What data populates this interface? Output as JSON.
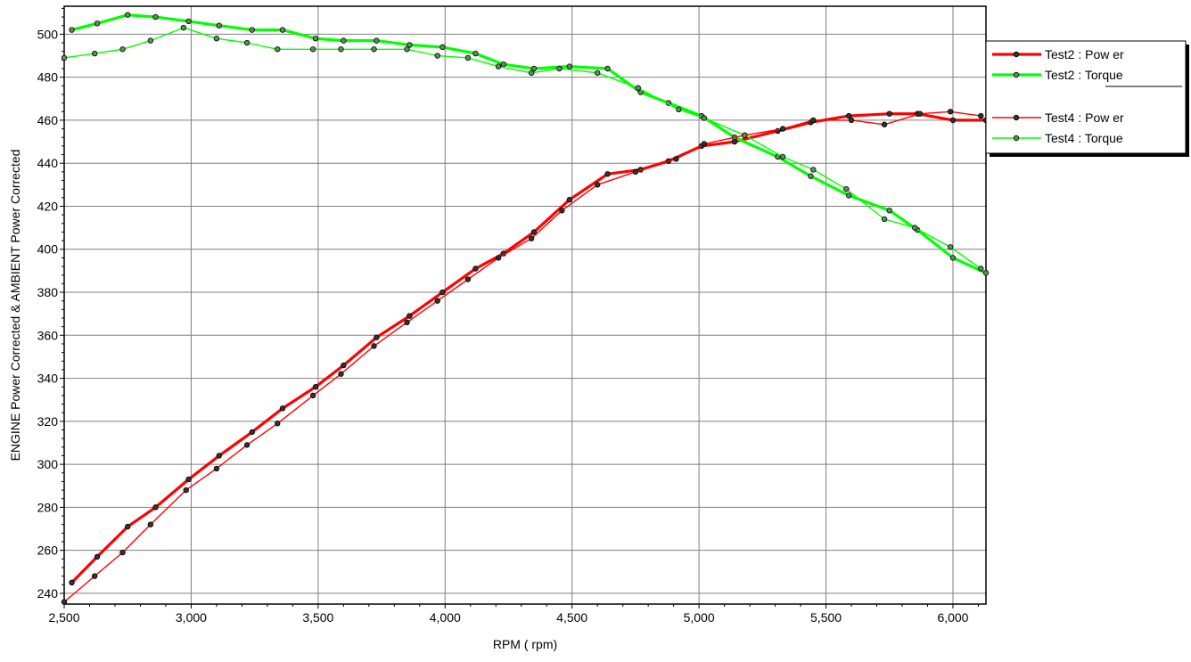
{
  "chart_data": {
    "type": "line",
    "xlabel": "RPM ( rpm)",
    "ylabel": "ENGINE Power Corrected & AMBIENT Power Corrected",
    "xlim": [
      2500,
      6130
    ],
    "ylim": [
      235,
      513
    ],
    "x_ticks": [
      2500,
      3000,
      3500,
      4000,
      4500,
      5000,
      5500,
      6000
    ],
    "x_tick_labels": [
      "2,500",
      "3,000",
      "3,500",
      "4,000",
      "4,500",
      "5,000",
      "5,500",
      "6,000"
    ],
    "y_ticks": [
      240,
      260,
      280,
      300,
      320,
      340,
      360,
      380,
      400,
      420,
      440,
      460,
      480,
      500
    ],
    "y_tick_labels": [
      "240",
      "260",
      "280",
      "300",
      "320",
      "340",
      "360",
      "380",
      "400",
      "420",
      "440",
      "460",
      "480",
      "500"
    ],
    "grid": true,
    "legend_position": "right",
    "series": [
      {
        "name": "Test2 : Pow er",
        "color": "#ff0000",
        "marker_color": "#333333",
        "bold": true,
        "points": [
          [
            2530,
            245
          ],
          [
            2630,
            257
          ],
          [
            2750,
            271
          ],
          [
            2860,
            280
          ],
          [
            2990,
            293
          ],
          [
            3110,
            304
          ],
          [
            3240,
            315
          ],
          [
            3360,
            326
          ],
          [
            3490,
            336
          ],
          [
            3600,
            346
          ],
          [
            3730,
            359
          ],
          [
            3860,
            369
          ],
          [
            3990,
            380
          ],
          [
            4120,
            391
          ],
          [
            4230,
            398
          ],
          [
            4350,
            408
          ],
          [
            4490,
            423
          ],
          [
            4640,
            435
          ],
          [
            4770,
            437
          ],
          [
            4880,
            441
          ],
          [
            5010,
            448
          ],
          [
            5140,
            450
          ],
          [
            5310,
            455
          ],
          [
            5440,
            459
          ],
          [
            5590,
            462
          ],
          [
            5750,
            463
          ],
          [
            5860,
            463
          ],
          [
            6000,
            460
          ],
          [
            6130,
            460
          ]
        ]
      },
      {
        "name": "Test2 : Torque",
        "color": "#00ff00",
        "marker_color": "#5a8f5a",
        "bold": true,
        "points": [
          [
            2530,
            502
          ],
          [
            2630,
            505
          ],
          [
            2750,
            509
          ],
          [
            2860,
            508
          ],
          [
            2990,
            506
          ],
          [
            3110,
            504
          ],
          [
            3240,
            502
          ],
          [
            3360,
            502
          ],
          [
            3490,
            498
          ],
          [
            3600,
            497
          ],
          [
            3730,
            497
          ],
          [
            3860,
            495
          ],
          [
            3990,
            494
          ],
          [
            4120,
            491
          ],
          [
            4230,
            486
          ],
          [
            4350,
            484
          ],
          [
            4490,
            485
          ],
          [
            4640,
            484
          ],
          [
            4770,
            473
          ],
          [
            4880,
            468
          ],
          [
            5010,
            462
          ],
          [
            5140,
            452
          ],
          [
            5310,
            443
          ],
          [
            5440,
            434
          ],
          [
            5590,
            425
          ],
          [
            5750,
            418
          ],
          [
            5860,
            409
          ],
          [
            6000,
            396
          ],
          [
            6130,
            389
          ]
        ]
      },
      {
        "name": "Test4 : Pow er",
        "color": "#ff0000",
        "marker_color": "#333333",
        "bold": false,
        "points": [
          [
            2500,
            236
          ],
          [
            2620,
            248
          ],
          [
            2730,
            259
          ],
          [
            2840,
            272
          ],
          [
            2980,
            288
          ],
          [
            3100,
            298
          ],
          [
            3220,
            309
          ],
          [
            3340,
            319
          ],
          [
            3480,
            332
          ],
          [
            3590,
            342
          ],
          [
            3720,
            355
          ],
          [
            3850,
            366
          ],
          [
            3970,
            376
          ],
          [
            4090,
            386
          ],
          [
            4210,
            396
          ],
          [
            4340,
            405
          ],
          [
            4460,
            418
          ],
          [
            4600,
            430
          ],
          [
            4750,
            436
          ],
          [
            4910,
            442
          ],
          [
            5020,
            449
          ],
          [
            5180,
            453
          ],
          [
            5330,
            456
          ],
          [
            5450,
            460
          ],
          [
            5600,
            460
          ],
          [
            5730,
            458
          ],
          [
            5870,
            463
          ],
          [
            5990,
            464
          ],
          [
            6110,
            462
          ]
        ]
      },
      {
        "name": "Test4 : Torque",
        "color": "#00ff00",
        "marker_color": "#5a8f5a",
        "bold": false,
        "points": [
          [
            2500,
            489
          ],
          [
            2620,
            491
          ],
          [
            2730,
            493
          ],
          [
            2840,
            497
          ],
          [
            2970,
            503
          ],
          [
            3100,
            498
          ],
          [
            3220,
            496
          ],
          [
            3340,
            493
          ],
          [
            3480,
            493
          ],
          [
            3590,
            493
          ],
          [
            3720,
            493
          ],
          [
            3850,
            493
          ],
          [
            3970,
            490
          ],
          [
            4090,
            489
          ],
          [
            4210,
            485
          ],
          [
            4340,
            482
          ],
          [
            4450,
            484
          ],
          [
            4600,
            482
          ],
          [
            4760,
            475
          ],
          [
            4920,
            465
          ],
          [
            5020,
            461
          ],
          [
            5180,
            453
          ],
          [
            5330,
            443
          ],
          [
            5450,
            437
          ],
          [
            5580,
            428
          ],
          [
            5730,
            414
          ],
          [
            5850,
            410
          ],
          [
            5990,
            401
          ],
          [
            6110,
            391
          ]
        ]
      }
    ]
  }
}
